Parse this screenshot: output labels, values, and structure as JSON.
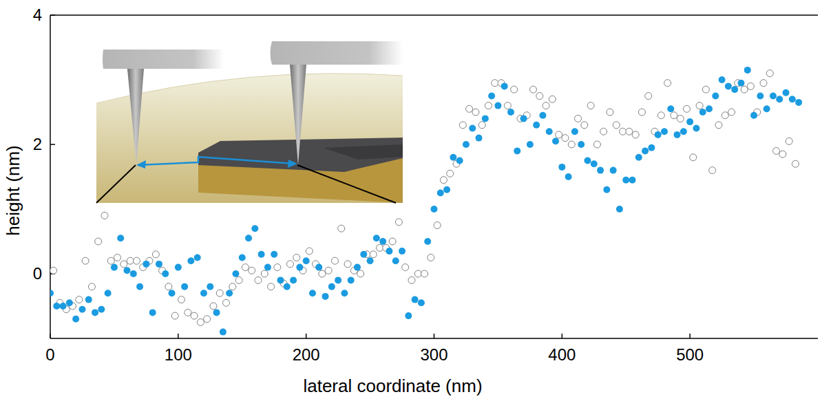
{
  "chart_data": {
    "type": "scatter",
    "x_label": "lateral coordinate (nm)",
    "y_label": "height (nm)",
    "xlim": [
      0,
      600
    ],
    "xticks": [
      0,
      100,
      200,
      300,
      400,
      500
    ],
    "ylim": [
      -1,
      4
    ],
    "yticks": [
      0,
      2,
      4
    ],
    "grid": false,
    "series": [
      {
        "color": "#7f7f7f",
        "marker": "open-circle",
        "x": [
          2.5,
          7.5,
          12.5,
          17.5,
          22.5,
          27.5,
          32.5,
          37.5,
          42.5,
          47.5,
          52.5,
          57.5,
          62.5,
          67.5,
          72.5,
          77.5,
          82.5,
          87.5,
          92.5,
          97.5,
          102.5,
          107.5,
          112.5,
          117.5,
          122.5,
          127.5,
          132.5,
          137.5,
          142.5,
          147.5,
          152.5,
          157.5,
          162.5,
          167.5,
          172.5,
          177.5,
          182.5,
          187.5,
          192.5,
          197.5,
          202.5,
          207.5,
          212.5,
          217.5,
          222.5,
          227.5,
          232.5,
          237.5,
          242.5,
          247.5,
          252.5,
          257.5,
          262.5,
          267.5,
          272.5,
          277.5,
          282.5,
          287.5,
          292.5,
          297.5,
          302.5,
          307.5,
          312.5,
          317.5,
          322.5,
          327.5,
          332.5,
          337.5,
          342.5,
          347.5,
          352.5,
          357.5,
          362.5,
          367.5,
          372.5,
          377.5,
          382.5,
          387.5,
          392.5,
          397.5,
          402.5,
          407.5,
          412.5,
          417.5,
          422.5,
          427.5,
          432.5,
          437.5,
          442.5,
          447.5,
          452.5,
          457.5,
          462.5,
          467.5,
          472.5,
          477.5,
          482.5,
          487.5,
          492.5,
          497.5,
          502.5,
          507.5,
          512.5,
          517.5,
          522.5,
          527.5,
          532.5,
          537.5,
          542.5,
          547.5,
          552.5,
          557.5,
          562.5,
          567.5,
          572.5,
          577.5,
          582.5
        ],
        "values": [
          0.05,
          -0.45,
          -0.55,
          -0.5,
          -0.4,
          0.2,
          -0.2,
          0.5,
          0.9,
          0.2,
          0.25,
          0.15,
          0.2,
          0.2,
          0.1,
          0.2,
          0.3,
          0.05,
          -0.2,
          -0.65,
          -0.4,
          -0.6,
          -0.65,
          -0.75,
          -0.7,
          -0.5,
          -0.3,
          -0.45,
          -0.2,
          -0.1,
          0.1,
          0.05,
          -0.1,
          0.0,
          -0.2,
          0.1,
          -0.15,
          0.15,
          0.25,
          0.05,
          0.35,
          0.15,
          0.0,
          0.05,
          0.2,
          0.7,
          0.15,
          0.05,
          0.0,
          0.3,
          0.3,
          0.4,
          0.4,
          0.5,
          0.8,
          0.1,
          -0.1,
          0.0,
          0.0,
          0.25,
          0.75,
          1.45,
          1.55,
          1.7,
          2.3,
          2.55,
          2.5,
          2.3,
          2.6,
          2.95,
          2.95,
          2.6,
          2.85,
          2.4,
          2.45,
          2.85,
          2.75,
          2.6,
          2.7,
          2.15,
          2.1,
          2.0,
          2.4,
          2.3,
          2.6,
          2.0,
          2.2,
          2.5,
          2.3,
          2.2,
          2.2,
          2.15,
          2.5,
          2.75,
          2.2,
          2.45,
          2.95,
          2.45,
          2.4,
          2.55,
          1.8,
          2.6,
          2.85,
          1.6,
          2.3,
          2.45,
          2.5,
          2.95,
          2.85,
          2.9,
          2.5,
          2.95,
          3.1,
          1.9,
          1.85,
          2.05,
          1.7
        ]
      },
      {
        "color": "#1b9be0",
        "marker": "filled-circle",
        "x": [
          0,
          5,
          10,
          15,
          20,
          25,
          30,
          35,
          40,
          45,
          50,
          55,
          60,
          65,
          70,
          75,
          80,
          85,
          90,
          95,
          100,
          105,
          110,
          115,
          120,
          125,
          130,
          135,
          140,
          145,
          150,
          155,
          160,
          165,
          170,
          175,
          180,
          185,
          190,
          195,
          200,
          205,
          210,
          215,
          220,
          225,
          230,
          235,
          240,
          245,
          250,
          255,
          260,
          265,
          270,
          275,
          280,
          285,
          290,
          295,
          300,
          305,
          310,
          315,
          320,
          325,
          330,
          335,
          340,
          345,
          350,
          355,
          360,
          365,
          370,
          375,
          380,
          385,
          390,
          395,
          400,
          405,
          410,
          415,
          420,
          425,
          430,
          435,
          440,
          445,
          450,
          455,
          460,
          465,
          470,
          475,
          480,
          485,
          490,
          495,
          500,
          505,
          510,
          515,
          520,
          525,
          530,
          535,
          540,
          545,
          550,
          555,
          560,
          565,
          570,
          575,
          580,
          585
        ],
        "values": [
          -0.3,
          -0.5,
          -0.5,
          -0.45,
          -0.7,
          -0.55,
          -0.4,
          -0.6,
          -0.55,
          -0.3,
          0.1,
          0.55,
          0.05,
          0.0,
          -0.2,
          0.15,
          -0.6,
          0.15,
          0.0,
          -0.3,
          0.1,
          -0.2,
          0.2,
          0.25,
          -0.3,
          -0.2,
          -0.6,
          -0.9,
          -0.3,
          0.0,
          0.25,
          0.55,
          0.7,
          0.3,
          0.1,
          0.3,
          -0.1,
          -0.2,
          -0.1,
          0.1,
          0.2,
          -0.3,
          0.1,
          -0.35,
          -0.2,
          -0.1,
          -0.3,
          -0.1,
          0.1,
          0.3,
          0.2,
          0.55,
          0.5,
          0.35,
          0.2,
          0.35,
          -0.65,
          -0.4,
          -0.45,
          0.5,
          1.0,
          1.25,
          1.3,
          1.8,
          1.75,
          2.0,
          2.25,
          2.1,
          2.4,
          2.75,
          2.6,
          2.9,
          2.5,
          1.9,
          2.4,
          2.0,
          2.3,
          2.45,
          2.2,
          2.05,
          1.65,
          1.5,
          2.2,
          2.0,
          1.75,
          1.7,
          1.6,
          1.3,
          1.6,
          1.0,
          1.45,
          1.45,
          1.8,
          1.9,
          1.95,
          2.15,
          2.2,
          2.55,
          2.15,
          2.2,
          2.35,
          2.25,
          2.5,
          2.55,
          2.75,
          3.0,
          2.9,
          2.85,
          2.95,
          3.15,
          2.45,
          2.75,
          2.55,
          2.75,
          2.7,
          2.8,
          2.7,
          2.65
        ]
      }
    ]
  }
}
